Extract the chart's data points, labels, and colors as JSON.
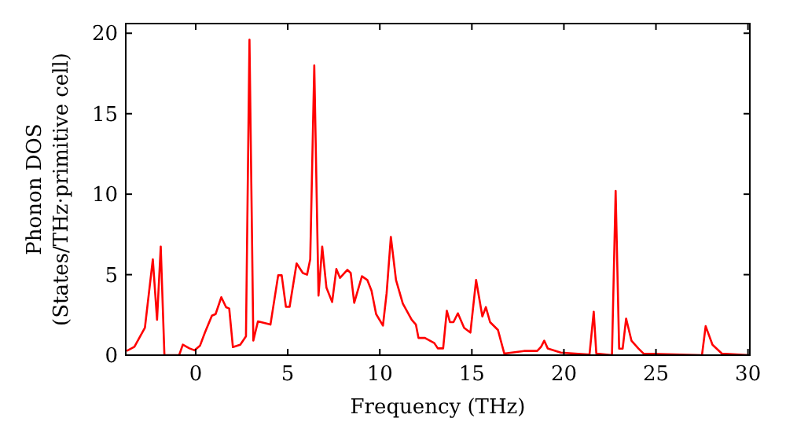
{
  "chart_data": {
    "type": "line",
    "xlabel": "Frequency (THz)",
    "ylabel": "Phonon DOS\n(States/THz·primitive cell)",
    "xlim": [
      -3.8,
      30.1
    ],
    "ylim": [
      0,
      20.6
    ],
    "xticks": [
      0,
      5,
      10,
      15,
      20,
      25,
      30
    ],
    "yticks": [
      0,
      5,
      10,
      15,
      20
    ],
    "grid": false,
    "series": [
      {
        "color": "#ff0000",
        "x": [
          -3.75,
          -3.33,
          -2.76,
          -2.33,
          -2.1,
          -1.9,
          -1.7,
          -0.9,
          -0.7,
          -0.34,
          -0.06,
          0.23,
          0.5,
          0.88,
          1.08,
          1.39,
          1.65,
          1.82,
          2.02,
          2.42,
          2.73,
          2.92,
          3.13,
          3.38,
          4.06,
          4.48,
          4.67,
          4.9,
          5.1,
          5.48,
          5.82,
          6.05,
          6.22,
          6.44,
          6.67,
          6.87,
          7.1,
          7.41,
          7.64,
          7.84,
          8.24,
          8.42,
          8.61,
          9.03,
          9.32,
          9.55,
          9.8,
          10.17,
          10.37,
          10.6,
          10.88,
          11.25,
          11.73,
          11.96,
          12.1,
          12.45,
          12.96,
          13.15,
          13.44,
          13.64,
          13.81,
          14.0,
          14.24,
          14.58,
          14.92,
          15.23,
          15.57,
          15.76,
          15.99,
          16.42,
          16.76,
          17.83,
          18.55,
          18.76,
          18.93,
          19.12,
          19.83,
          21.39,
          21.62,
          21.76,
          22.61,
          22.81,
          23.0,
          23.19,
          23.38,
          23.67,
          24.04,
          24.32,
          27.5,
          27.7,
          28.07,
          28.58,
          30.06
        ],
        "values": [
          0.26,
          0.52,
          1.7,
          5.95,
          2.2,
          6.75,
          0,
          0,
          0.65,
          0.42,
          0.3,
          0.58,
          1.4,
          2.45,
          2.55,
          3.6,
          2.98,
          2.9,
          0.5,
          0.65,
          1.17,
          19.6,
          0.9,
          2.1,
          1.9,
          4.96,
          4.96,
          3.0,
          3.0,
          5.7,
          5.1,
          5.0,
          5.95,
          18.0,
          3.7,
          6.75,
          4.2,
          3.3,
          5.35,
          4.8,
          5.3,
          5.1,
          3.25,
          4.9,
          4.67,
          4.0,
          2.55,
          1.84,
          3.85,
          7.35,
          4.67,
          3.2,
          2.2,
          1.9,
          1.07,
          1.07,
          0.75,
          0.42,
          0.42,
          2.76,
          2.05,
          2.05,
          2.6,
          1.7,
          1.4,
          4.67,
          2.4,
          2.98,
          2.05,
          1.56,
          0.1,
          0.26,
          0.26,
          0.52,
          0.9,
          0.42,
          0.16,
          0.03,
          2.7,
          0.1,
          0,
          10.2,
          0.4,
          0.4,
          2.27,
          0.9,
          0.42,
          0.1,
          0,
          1.8,
          0.65,
          0.1,
          0
        ]
      }
    ]
  }
}
